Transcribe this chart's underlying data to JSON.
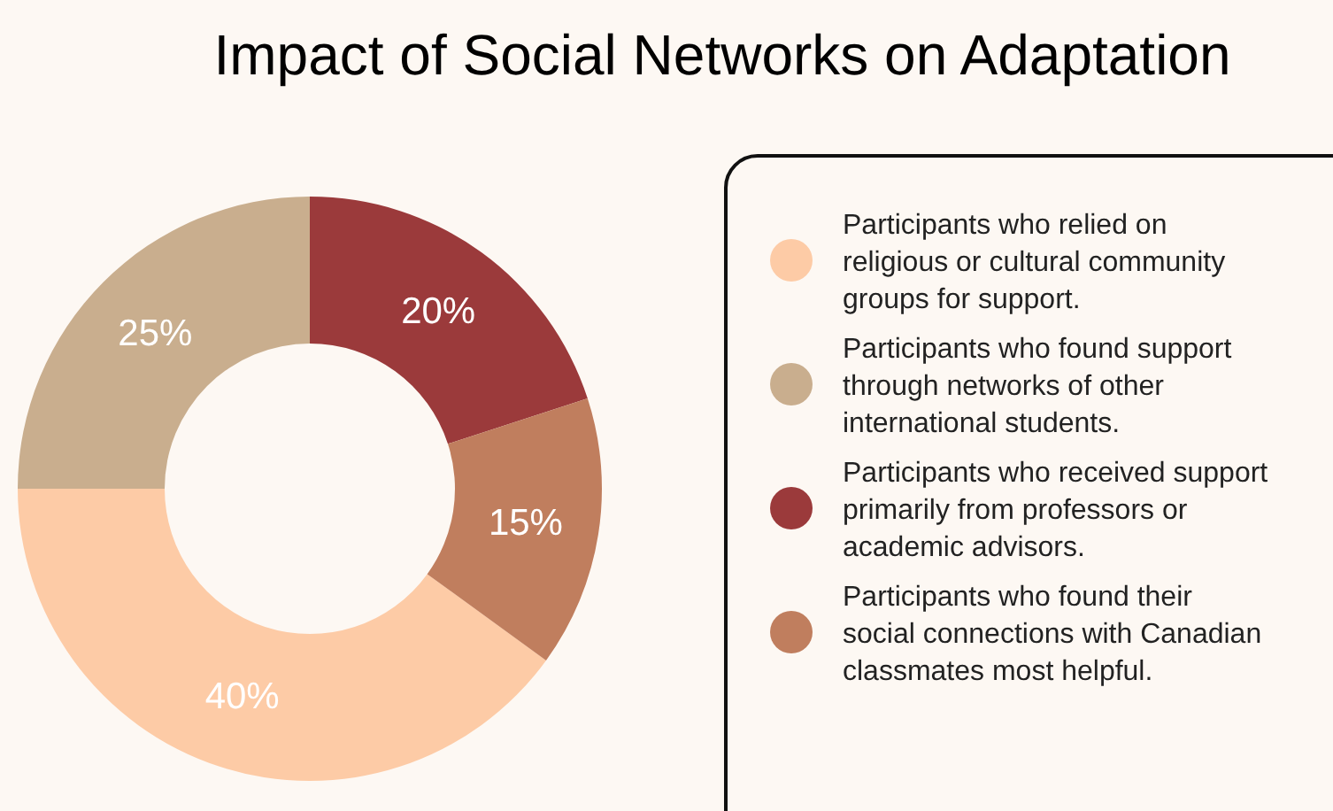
{
  "chart_data": {
    "type": "donut",
    "title": "Impact of Social Networks on Adaptation",
    "categories": [
      "Participants who relied on religious or cultural community groups for support.",
      "Participants who found support through networks of other international students.",
      "Participants who received support primarily from professors or academic advisors.",
      "Participants who found their social connections with Canadian classmates most helpful."
    ],
    "values": [
      40,
      25,
      20,
      15
    ],
    "colors": [
      "#fdcba6",
      "#c9ae8e",
      "#9b3a3b",
      "#c07e5e"
    ],
    "value_labels": [
      "40%",
      "25%",
      "20%",
      "15%"
    ],
    "legend": "right"
  }
}
